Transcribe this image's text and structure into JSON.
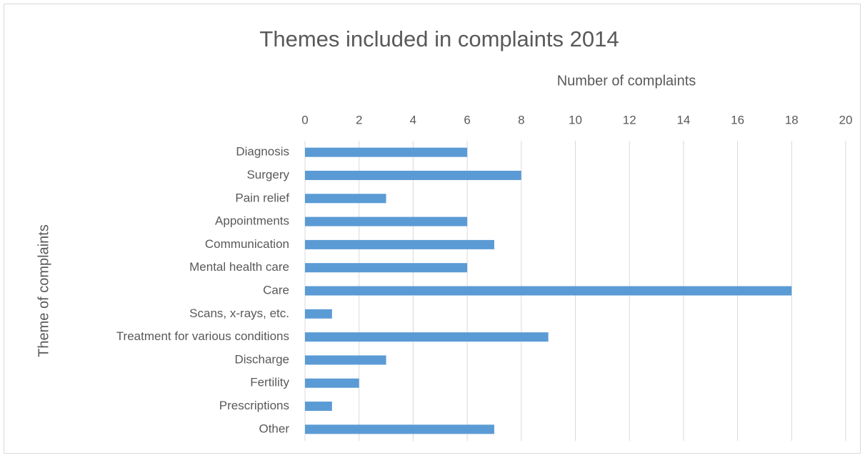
{
  "chart_data": {
    "type": "barh",
    "title": "Themes included in complaints 2014",
    "x_label": "Number of complaints",
    "y_label": "Theme of complaints",
    "categories": [
      "Diagnosis",
      "Surgery",
      "Pain relief",
      "Appointments",
      "Communication",
      "Mental health care",
      "Care",
      "Scans, x-rays, etc.",
      "Treatment for various conditions",
      "Discharge",
      "Fertility",
      "Prescriptions",
      "Other"
    ],
    "values": [
      6,
      8,
      3,
      6,
      7,
      6,
      18,
      1,
      9,
      3,
      2,
      1,
      7
    ],
    "color": "#5b9bd5",
    "xlim": [
      0,
      20
    ],
    "xticks": [
      0,
      2,
      4,
      6,
      8,
      10,
      12,
      14,
      16,
      18,
      20
    ],
    "grid": true
  }
}
